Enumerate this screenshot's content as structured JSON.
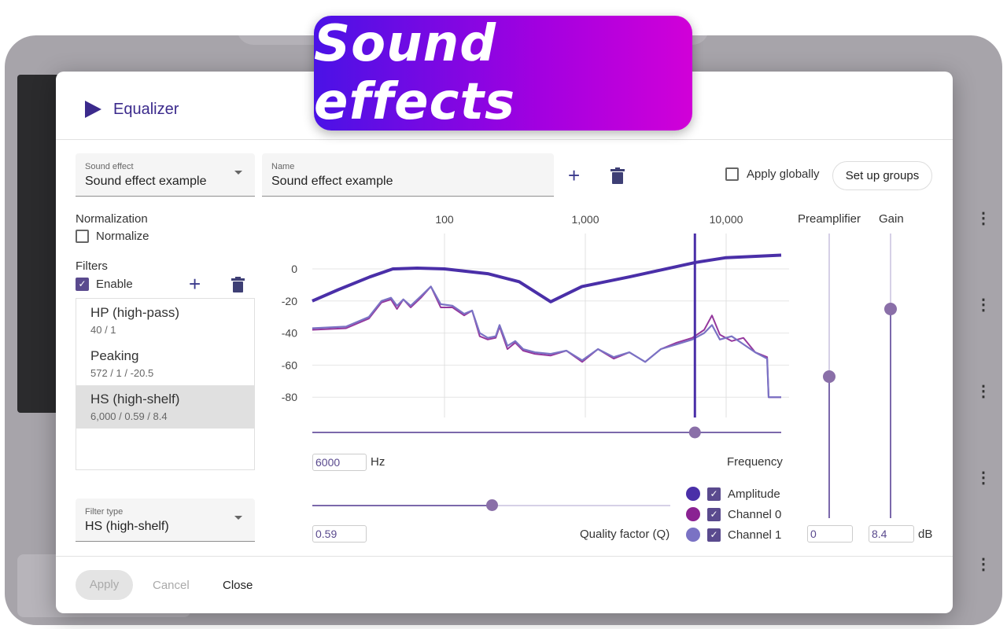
{
  "banner": {
    "title": "Sound effects"
  },
  "dialog": {
    "title": "Equalizer",
    "sound_effect": {
      "label": "Sound effect",
      "value": "Sound effect example"
    },
    "name_field": {
      "label": "Name",
      "value": "Sound effect example"
    },
    "apply_globally": "Apply globally",
    "set_up_groups": "Set up groups",
    "normalization": {
      "heading": "Normalization",
      "normalize": "Normalize"
    },
    "filters": {
      "heading": "Filters",
      "enable": "Enable",
      "items": [
        {
          "name": "HP (high-pass)",
          "detail": "40 / 1"
        },
        {
          "name": "Peaking",
          "detail": "572 / 1 / -20.5"
        },
        {
          "name": "HS (high-shelf)",
          "detail": "6,000 / 0.59 / 8.4",
          "selected": true
        }
      ]
    },
    "filter_type": {
      "label": "Filter type",
      "value": "HS (high-shelf)"
    },
    "frequency": {
      "value": "6000",
      "unit": "Hz",
      "label": "Frequency"
    },
    "quality": {
      "value": "0.59",
      "label": "Quality factor (Q)",
      "slider_fraction": 0.5
    },
    "preamp": {
      "label": "Preamplifier",
      "value": "0"
    },
    "gain": {
      "label": "Gain",
      "value": "8.4",
      "unit": "dB"
    },
    "legend": [
      {
        "label": "Amplitude",
        "color": "#4a2fa8"
      },
      {
        "label": "Channel 0",
        "color": "#8a2292"
      },
      {
        "label": "Channel 1",
        "color": "#7a72c4"
      }
    ],
    "footer": {
      "apply": "Apply",
      "cancel": "Cancel",
      "close": "Close"
    }
  },
  "chart_data": {
    "type": "line",
    "xscale": "log",
    "xlim": [
      11.5,
      24600
    ],
    "ylim": [
      -90,
      12
    ],
    "xticks": [
      {
        "v": 100,
        "label": "100"
      },
      {
        "v": 1000,
        "label": "1,000"
      },
      {
        "v": 10000,
        "label": "10,000"
      }
    ],
    "yticks": [
      {
        "v": 0,
        "label": "0"
      },
      {
        "v": -20,
        "label": "-20"
      },
      {
        "v": -40,
        "label": "-40"
      },
      {
        "v": -60,
        "label": "-60"
      },
      {
        "v": -80,
        "label": "-80"
      }
    ],
    "marker_freq": 6000,
    "series": [
      {
        "name": "Amplitude",
        "points": [
          [
            11.5,
            -20
          ],
          [
            17.6,
            -13
          ],
          [
            29.5,
            -5
          ],
          [
            43,
            0
          ],
          [
            64,
            0.5
          ],
          [
            100,
            0
          ],
          [
            203,
            -3
          ],
          [
            339,
            -8
          ],
          [
            568,
            -20.5
          ],
          [
            946,
            -11
          ],
          [
            2050,
            -5
          ],
          [
            6060,
            4
          ],
          [
            10000,
            7
          ],
          [
            24600,
            8.6
          ]
        ]
      },
      {
        "name": "Channel 0",
        "points": [
          [
            11.5,
            -38
          ],
          [
            20,
            -37
          ],
          [
            29,
            -31
          ],
          [
            35.7,
            -21
          ],
          [
            41.7,
            -19
          ],
          [
            46,
            -25
          ],
          [
            51,
            -19
          ],
          [
            57.5,
            -24
          ],
          [
            68,
            -18
          ],
          [
            80,
            -11
          ],
          [
            94,
            -24
          ],
          [
            114,
            -24
          ],
          [
            138,
            -29
          ],
          [
            157,
            -26
          ],
          [
            178,
            -42
          ],
          [
            203,
            -44
          ],
          [
            231,
            -43
          ],
          [
            246,
            -36
          ],
          [
            280,
            -50
          ],
          [
            318,
            -46
          ],
          [
            362,
            -51
          ],
          [
            439,
            -53
          ],
          [
            568,
            -54
          ],
          [
            734,
            -51
          ],
          [
            950,
            -58
          ],
          [
            1230,
            -50
          ],
          [
            1590,
            -56
          ],
          [
            2055,
            -52
          ],
          [
            2660,
            -58
          ],
          [
            3440,
            -50
          ],
          [
            4450,
            -46
          ],
          [
            5750,
            -43
          ],
          [
            6980,
            -38
          ],
          [
            7930,
            -29
          ],
          [
            9020,
            -41
          ],
          [
            10940,
            -45
          ],
          [
            13270,
            -43
          ],
          [
            16100,
            -52
          ],
          [
            19540,
            -55
          ],
          [
            20040,
            -80
          ],
          [
            24600,
            -80
          ]
        ]
      },
      {
        "name": "Channel 1",
        "points": [
          [
            11.5,
            -37
          ],
          [
            20,
            -36
          ],
          [
            29,
            -30
          ],
          [
            35.7,
            -20
          ],
          [
            41.7,
            -18
          ],
          [
            46,
            -23
          ],
          [
            51,
            -19
          ],
          [
            57.5,
            -23
          ],
          [
            68,
            -17
          ],
          [
            80,
            -11
          ],
          [
            94,
            -22
          ],
          [
            114,
            -23
          ],
          [
            138,
            -28
          ],
          [
            157,
            -26
          ],
          [
            178,
            -40
          ],
          [
            203,
            -43
          ],
          [
            231,
            -42
          ],
          [
            246,
            -35
          ],
          [
            280,
            -48
          ],
          [
            318,
            -45
          ],
          [
            362,
            -50
          ],
          [
            439,
            -52
          ],
          [
            568,
            -53
          ],
          [
            734,
            -51
          ],
          [
            950,
            -57
          ],
          [
            1230,
            -50
          ],
          [
            1590,
            -55
          ],
          [
            2055,
            -52
          ],
          [
            2660,
            -58
          ],
          [
            3440,
            -50
          ],
          [
            4450,
            -47
          ],
          [
            5750,
            -44
          ],
          [
            6980,
            -40
          ],
          [
            7930,
            -35
          ],
          [
            9020,
            -44
          ],
          [
            10940,
            -42
          ],
          [
            13270,
            -47
          ],
          [
            16100,
            -52
          ],
          [
            19540,
            -56
          ],
          [
            20040,
            -80
          ],
          [
            24600,
            -80
          ]
        ]
      }
    ]
  }
}
